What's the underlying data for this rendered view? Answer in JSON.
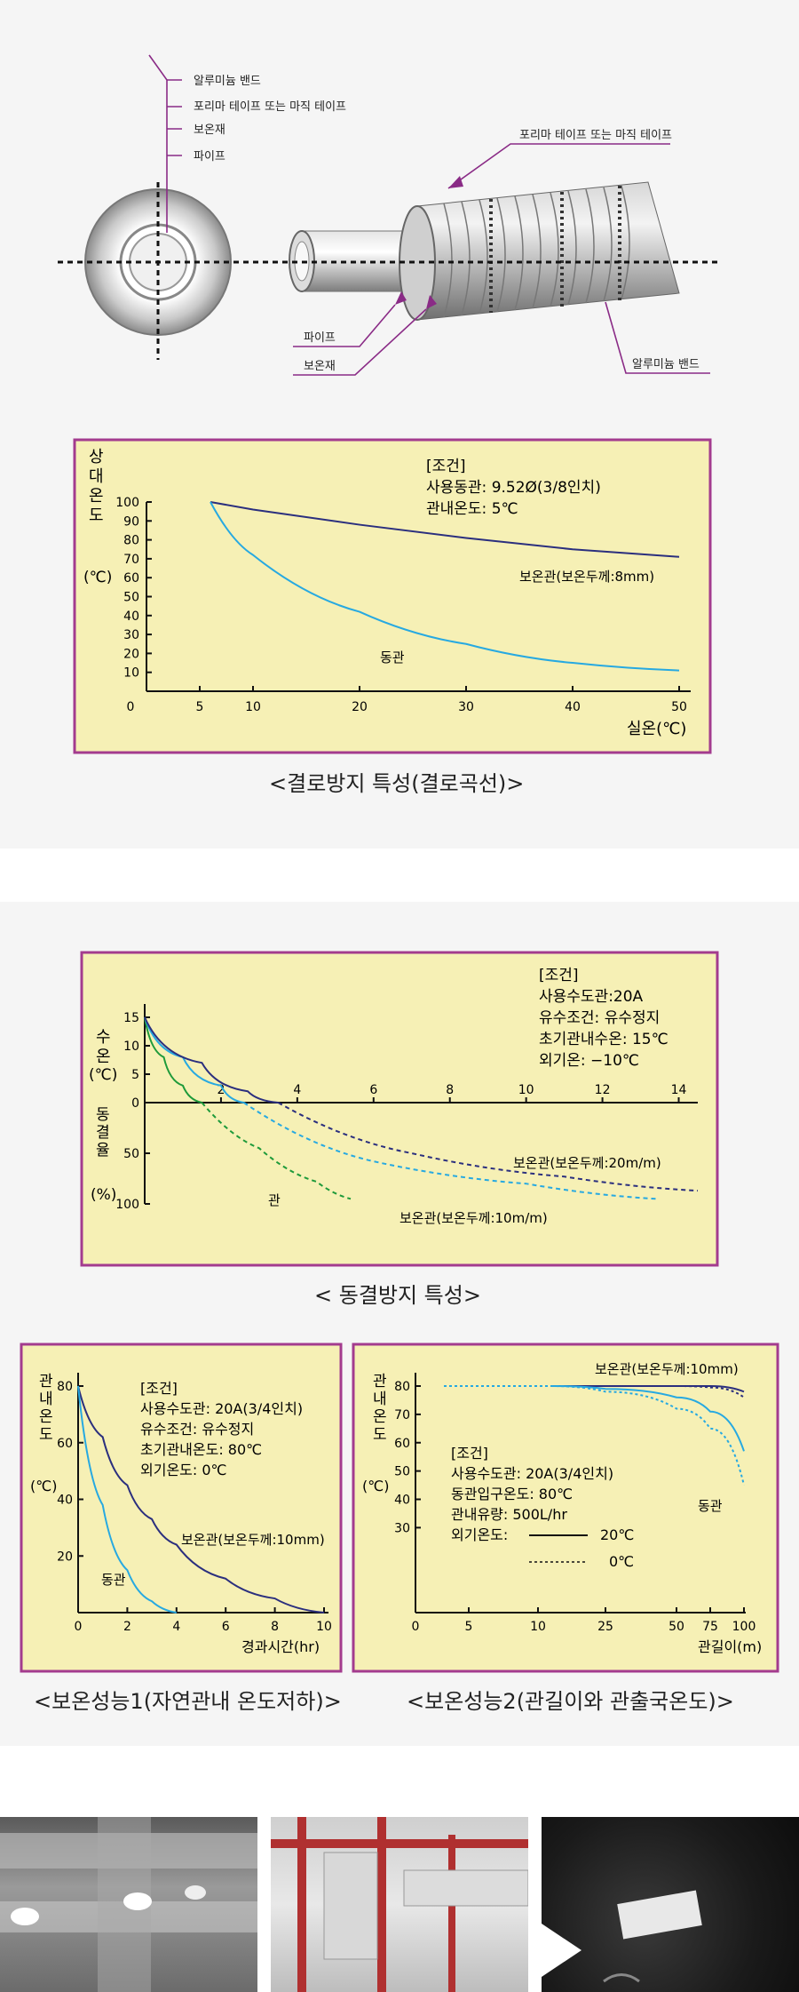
{
  "pipe_diagram": {
    "left_labels": [
      "알루미늄 밴드",
      "포리마 테이프 또는 마직 테이프",
      "보온재",
      "파이프"
    ],
    "right_top_label": "포리마 테이프 또는 마직 테이프",
    "bottom_labels": [
      "파이프",
      "보온재"
    ],
    "right_bottom_label": "알루미늄 밴드"
  },
  "chart1": {
    "caption": "<결로방지 특성(결로곡선)>",
    "condition_title": "[조건]",
    "condition_lines": [
      "사용동관: 9.52Ø(3/8인치)",
      "관내온도: 5℃"
    ],
    "ylabel": "상대온도",
    "yunit": "(℃)",
    "xlabel": "실온(℃)",
    "series_labels": [
      "보온관(보온두께:8mm)",
      "동관"
    ]
  },
  "chart2": {
    "caption": "< 동결방지 특성>",
    "condition_title": "[조건]",
    "condition_lines": [
      "사용수도관:20A",
      "유수조건: 유수정지",
      "초기관내수온: 15℃",
      "외기온: −10℃"
    ],
    "ylabel_top": "수온",
    "yunit_top": "(℃)",
    "ylabel_bottom": "동결율",
    "yunit_bottom": "(%)",
    "series_labels": [
      "보온관(보온두께:20m/m)",
      "관",
      "보온관(보온두께:10m/m)"
    ]
  },
  "chart3": {
    "caption": "<보온성능1(자연관내 온도저하)>",
    "condition_title": "[조건]",
    "condition_lines": [
      "사용수도관: 20A(3/4인치)",
      "유수조건: 유수정지",
      "초기관내온도: 80℃",
      "외기온도: 0℃"
    ],
    "ylabel": "관내온도",
    "yunit": "(℃)",
    "xlabel": "경과시간(hr)",
    "series_labels": [
      "보온관(보온두께:10mm)",
      "동관"
    ]
  },
  "chart4": {
    "caption": "<보온성능2(관길이와 관출국온도)>",
    "condition_title": "[조건]",
    "condition_lines": [
      "사용수도관: 20A(3/4인치)",
      "동관입구온도: 80℃",
      "관내유량: 500L/hr"
    ],
    "legend_title": "외기온도:",
    "legend_items": [
      "20℃",
      "0℃"
    ],
    "ylabel": "관내온도",
    "yunit": "(℃)",
    "xlabel": "관길이(m)",
    "series_labels": [
      "보온관(보온두께:10mm)",
      "동관"
    ]
  },
  "chart_data": [
    {
      "type": "line",
      "x": [
        6,
        10,
        20,
        30,
        40,
        50
      ],
      "xticks": [
        0,
        5,
        10,
        20,
        30,
        40,
        50
      ],
      "xlim": [
        0,
        50
      ],
      "ylim": [
        0,
        100
      ],
      "yticks": [
        10,
        20,
        30,
        40,
        50,
        60,
        70,
        80,
        90,
        100
      ],
      "series": [
        {
          "name": "보온관(보온두께:8mm)",
          "values": [
            100,
            96,
            88,
            81,
            75,
            71
          ]
        },
        {
          "name": "동관",
          "values": [
            100,
            72,
            42,
            25,
            15,
            11
          ]
        }
      ],
      "colors": [
        "#2b2f7e",
        "#27a9e1"
      ]
    },
    {
      "type": "line",
      "xticks": [
        2,
        4,
        6,
        8,
        10,
        12,
        14
      ],
      "xlim": [
        0,
        14.5
      ],
      "y_top_ticks": [
        15,
        10,
        5,
        0
      ],
      "y_bottom_ticks": [
        50,
        100
      ],
      "series": [
        {
          "name": "관",
          "temp_x": [
            0,
            0.5,
            1,
            1.5
          ],
          "temp_y": [
            15,
            8,
            3,
            0
          ],
          "freeze_x": [
            1.5,
            3,
            4.5,
            5.4
          ],
          "freeze_y": [
            0,
            45,
            78,
            95
          ]
        },
        {
          "name": "보온관(보온두께:10m/m)",
          "temp_x": [
            0,
            1,
            2,
            2.6
          ],
          "temp_y": [
            15,
            8,
            3,
            0
          ],
          "freeze_x": [
            2.6,
            6,
            10,
            13.4
          ],
          "freeze_y": [
            0,
            58,
            80,
            95
          ]
        },
        {
          "name": "보온관(보온두께:20m/m)",
          "temp_x": [
            0,
            1.5,
            2.7,
            3.5
          ],
          "temp_y": [
            15,
            7,
            2,
            0
          ],
          "freeze_x": [
            3.5,
            7,
            11,
            14.5
          ],
          "freeze_y": [
            0,
            50,
            73,
            87
          ]
        }
      ],
      "colors": [
        "#1e9a3a",
        "#27a9e1",
        "#2b2f7e"
      ]
    },
    {
      "type": "line",
      "x": [
        0,
        1,
        2,
        3,
        4,
        6,
        8,
        10
      ],
      "xticks": [
        0,
        2,
        4,
        6,
        8,
        10
      ],
      "ylim": [
        0,
        80
      ],
      "yticks": [
        20,
        40,
        60,
        80
      ],
      "series": [
        {
          "name": "보온관(보온두께:10mm)",
          "values": [
            80,
            62,
            45,
            33,
            24,
            12,
            5,
            0
          ]
        },
        {
          "name": "동관",
          "values": [
            80,
            38,
            15,
            4,
            0,
            null,
            null,
            null
          ]
        }
      ],
      "colors": [
        "#2b2f7e",
        "#27a9e1"
      ]
    },
    {
      "type": "line",
      "x": [
        0,
        5,
        10,
        25,
        50,
        75,
        100
      ],
      "xticks": [
        0,
        5,
        10,
        25,
        50,
        75,
        100
      ],
      "ylim": [
        0,
        80
      ],
      "yticks": [
        30,
        40,
        50,
        60,
        70,
        80
      ],
      "series": [
        {
          "name": "보온관 20℃",
          "values": [
            80,
            80,
            80,
            80,
            80,
            80,
            78
          ]
        },
        {
          "name": "보온관 0℃",
          "values": [
            80,
            80,
            80,
            80,
            80,
            79.5,
            76
          ]
        },
        {
          "name": "동관 20℃",
          "values": [
            80,
            80,
            80,
            79,
            76,
            71,
            57
          ]
        },
        {
          "name": "동관 0℃",
          "values": [
            80,
            80,
            80,
            78,
            72,
            65,
            45
          ]
        }
      ],
      "colors": [
        "#2b2f7e",
        "#2b2f7e",
        "#27a9e1",
        "#27a9e1"
      ]
    }
  ],
  "colors": {
    "panel_fill": "#f6f0b5",
    "panel_border": "#a33b8e",
    "navy": "#2b2f7e",
    "cyan": "#27a9e1",
    "green": "#1e9a3a",
    "leader": "#8a2b86"
  },
  "photos": [
    "duct-ceiling-photo",
    "red-pipe-ceiling-photo",
    "black-ceiling-photo"
  ]
}
